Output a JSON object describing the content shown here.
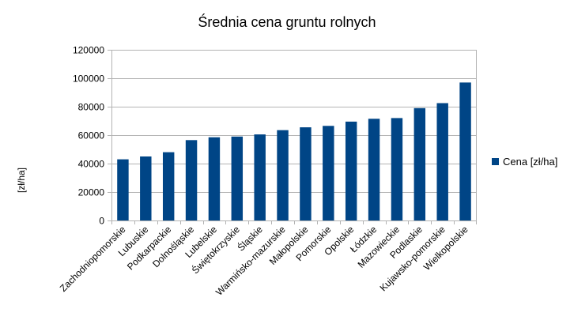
{
  "chart_data": {
    "type": "bar",
    "title": "Średnia cena gruntu rolnych",
    "xlabel": "",
    "ylabel": "[zł/ha]",
    "ylim": [
      0,
      120000
    ],
    "yticks": [
      0,
      20000,
      40000,
      60000,
      80000,
      100000,
      120000
    ],
    "ytick_labels": [
      "0",
      "20000",
      "40000",
      "60000",
      "80000",
      "100000",
      "120000"
    ],
    "grid": true,
    "legend_position": "right",
    "categories": [
      "Zachodniopomorskie",
      "Lubuskie",
      "Podkarpackie",
      "Dolnośląskie",
      "Lubelskie",
      "Świętokrzyskie",
      "Śląskie",
      "Warmińsko-mazurskie",
      "Małopolskie",
      "Pomorskie",
      "Opolskie",
      "Łódzkie",
      "Mazowieckie",
      "Podlaskie",
      "Kujawsko-pomorskie",
      "Wielkopolskie"
    ],
    "series": [
      {
        "name": "Cena [zł/ha]",
        "color": "#004586",
        "values": [
          43000,
          45000,
          48000,
          56500,
          58500,
          59000,
          60500,
          63500,
          65500,
          66500,
          69500,
          71500,
          72000,
          79000,
          82500,
          97000
        ]
      }
    ]
  }
}
